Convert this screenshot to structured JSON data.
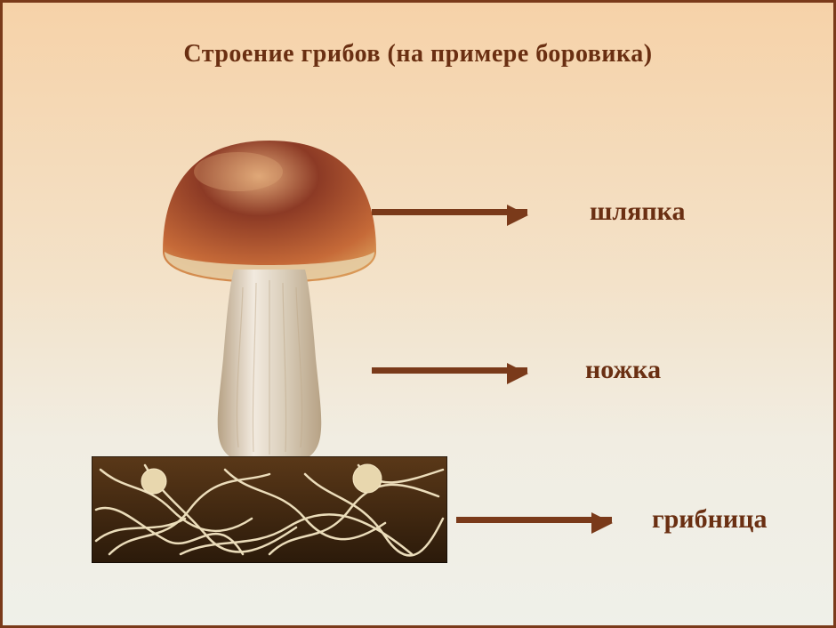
{
  "title": {
    "text": "Строение грибов (на примере боровика)",
    "fontsize": 28,
    "color": "#6a2f12"
  },
  "labels": {
    "cap": {
      "text": "шляпка",
      "fontsize": 30,
      "color": "#6a2f12"
    },
    "stem": {
      "text": "ножка",
      "fontsize": 30,
      "color": "#6a2f12"
    },
    "mycelium": {
      "text": "грибница",
      "fontsize": 30,
      "color": "#6a2f12"
    }
  },
  "arrows": {
    "color": "#7a3a1a",
    "thickness": 7,
    "head_width": 24,
    "cap": {
      "length": 175,
      "gap": 70
    },
    "stem": {
      "length": 175,
      "gap": 65
    },
    "mycelium": {
      "length": 175,
      "gap": 45
    }
  },
  "mushroom": {
    "cap": {
      "top_color": "#8c3a25",
      "mid_color": "#c66a38",
      "rim_color": "#d99856",
      "edge_color": "#e7cfa6",
      "highlight": "#e0a878"
    },
    "stem": {
      "light": "#f2eadf",
      "mid": "#d9cdb9",
      "shade": "#b7a285",
      "stripe": "#bfa98a"
    },
    "soil": {
      "dark": "#2b1a0a",
      "mid": "#5a3818",
      "mycelium_thread": "#f5e7c4",
      "node": "#e8d7ae"
    }
  },
  "background": {
    "top": "#f6d2a8",
    "bottom": "#eff0e9",
    "border": "#7a3a1a"
  }
}
